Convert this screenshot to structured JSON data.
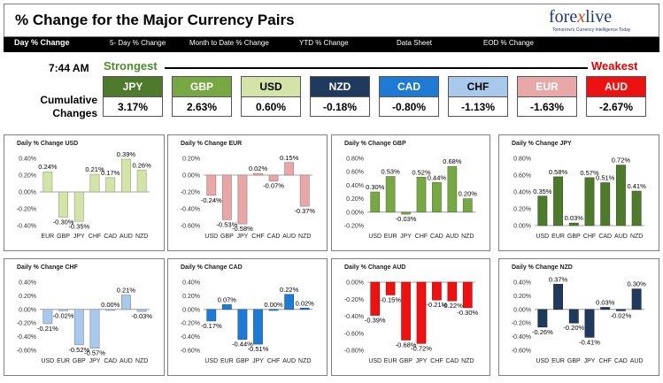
{
  "header": {
    "title": "% Change for the Major Currency Pairs",
    "logo_main_left": "fore",
    "logo_main_x": "x",
    "logo_main_right": "live",
    "logo_sub": "Tomorrow's Currency Intelligence Today"
  },
  "nav": {
    "items": [
      "Day % Change",
      "5- Day % Change",
      "Month to Date % Change",
      "YTD % Change",
      "Data Sheet",
      "EOD % Change"
    ]
  },
  "summary": {
    "time": "7:44 AM",
    "cumulative_label_1": "Cumulative",
    "cumulative_label_2": "Changes",
    "strongest_label": "Strongest",
    "weakest_label": "Weakest",
    "tiles": [
      {
        "currency": "JPY",
        "value": "3.17%",
        "color": "#4e7a2c",
        "text_color": "#ffffff"
      },
      {
        "currency": "GBP",
        "value": "2.63%",
        "color": "#77a843",
        "text_color": "#ffffff"
      },
      {
        "currency": "USD",
        "value": "0.60%",
        "color": "#d4e4a8",
        "text_color": "#000000"
      },
      {
        "currency": "NZD",
        "value": "-0.18%",
        "color": "#1f3a5c",
        "text_color": "#ffffff"
      },
      {
        "currency": "CAD",
        "value": "-0.80%",
        "color": "#1f7ad4",
        "text_color": "#ffffff"
      },
      {
        "currency": "CHF",
        "value": "-1.13%",
        "color": "#a8c8ec",
        "text_color": "#000000"
      },
      {
        "currency": "EUR",
        "value": "-1.63%",
        "color": "#e8a8a8",
        "text_color": "#ffffff"
      },
      {
        "currency": "AUD",
        "value": "-2.67%",
        "color": "#ee1111",
        "text_color": "#ffffff"
      }
    ]
  },
  "chart_data": [
    {
      "type": "bar",
      "title": "Daily % Change USD",
      "categories": [
        "EUR",
        "GBP",
        "JPY",
        "CHF",
        "CAD",
        "AUD",
        "NZD"
      ],
      "values": [
        0.24,
        -0.3,
        -0.35,
        0.21,
        0.17,
        0.39,
        0.26
      ],
      "labels": [
        "0.24%",
        "-0.30%",
        "-0.35%",
        "0.21%",
        "0.17%",
        "0.39%",
        "0.26%"
      ],
      "ylim": [
        -0.4,
        0.4
      ],
      "yticks": [
        "0.40%",
        "0.20%",
        "0.00%",
        "-0.20%",
        "-0.40%"
      ],
      "color": "#d4e4a8"
    },
    {
      "type": "bar",
      "title": "Daily % Change EUR",
      "categories": [
        "USD",
        "GBP",
        "JPY",
        "CHF",
        "CAD",
        "AUD",
        "NZD"
      ],
      "values": [
        -0.24,
        -0.53,
        -0.58,
        0.02,
        -0.07,
        0.15,
        -0.37
      ],
      "labels": [
        "-0.24%",
        "-0.53%",
        "-0.58%",
        "0.02%",
        "-0.07%",
        "0.15%",
        "-0.37%"
      ],
      "ylim": [
        -0.6,
        0.2
      ],
      "yticks": [
        "0.20%",
        "0.00%",
        "-0.20%",
        "-0.40%",
        "-0.60%"
      ],
      "color": "#e8a8a8"
    },
    {
      "type": "bar",
      "title": "Daily % Change GBP",
      "categories": [
        "USD",
        "EUR",
        "JPY",
        "CHF",
        "CAD",
        "AUD",
        "NZD"
      ],
      "values": [
        0.3,
        0.53,
        -0.03,
        0.52,
        0.44,
        0.68,
        0.2
      ],
      "labels": [
        "0.30%",
        "0.53%",
        "-0.03%",
        "0.52%",
        "0.44%",
        "0.68%",
        "0.20%"
      ],
      "ylim": [
        -0.2,
        0.8
      ],
      "yticks": [
        "0.80%",
        "0.60%",
        "0.40%",
        "0.20%",
        "0.00%",
        "-0.20%"
      ],
      "color": "#77a843"
    },
    {
      "type": "bar",
      "title": "Daily % Change JPY",
      "categories": [
        "USD",
        "EUR",
        "GBP",
        "CHF",
        "CAD",
        "AUD",
        "NZD"
      ],
      "values": [
        0.35,
        0.58,
        0.03,
        0.57,
        0.51,
        0.72,
        0.41
      ],
      "labels": [
        "0.35%",
        "0.58%",
        "0.03%",
        "0.57%",
        "0.51%",
        "0.72%",
        "0.41%"
      ],
      "ylim": [
        0,
        0.8
      ],
      "yticks": [
        "0.80%",
        "0.60%",
        "0.40%",
        "0.20%",
        "0.00%"
      ],
      "color": "#4e7a2c"
    },
    {
      "type": "bar",
      "title": "Daily % Change CHF",
      "categories": [
        "USD",
        "EUR",
        "GBP",
        "JPY",
        "CAD",
        "AUD",
        "NZD"
      ],
      "values": [
        -0.21,
        -0.02,
        -0.52,
        -0.57,
        0.0,
        0.21,
        -0.03
      ],
      "labels": [
        "-0.21%",
        "-0.02%",
        "-0.52%",
        "-0.57%",
        "0.00%",
        "0.21%",
        "-0.03%"
      ],
      "ylim": [
        -0.6,
        0.4
      ],
      "yticks": [
        "0.40%",
        "0.20%",
        "0.00%",
        "-0.20%",
        "-0.40%",
        "-0.60%"
      ],
      "color": "#a8c8ec"
    },
    {
      "type": "bar",
      "title": "Daily % Change CAD",
      "categories": [
        "USD",
        "EUR",
        "GBP",
        "JPY",
        "CHF",
        "AUD",
        "NZD"
      ],
      "values": [
        -0.17,
        0.07,
        -0.44,
        -0.51,
        0.0,
        0.22,
        0.02
      ],
      "labels": [
        "-0.17%",
        "0.07%",
        "-0.44%",
        "-0.51%",
        "0.00%",
        "0.22%",
        "0.02%"
      ],
      "ylim": [
        -0.6,
        0.4
      ],
      "yticks": [
        "0.40%",
        "0.20%",
        "0.00%",
        "-0.20%",
        "-0.40%",
        "-0.60%"
      ],
      "color": "#1f7ad4"
    },
    {
      "type": "bar",
      "title": "Daily % Change AUD",
      "categories": [
        "USD",
        "EUR",
        "GBP",
        "JPY",
        "CHF",
        "CAD",
        "NZD"
      ],
      "values": [
        -0.39,
        -0.15,
        -0.68,
        -0.72,
        -0.21,
        -0.22,
        -0.3
      ],
      "labels": [
        "-0.39%",
        "-0.15%",
        "-0.68%",
        "-0.72%",
        "-0.21%",
        "-0.22%",
        "-0.30%"
      ],
      "ylim": [
        -0.8,
        0
      ],
      "yticks": [
        "0.00%",
        "-0.20%",
        "-0.40%",
        "-0.60%",
        "-0.80%"
      ],
      "color": "#ee1111"
    },
    {
      "type": "bar",
      "title": "Daily % Change NZD",
      "categories": [
        "USD",
        "EUR",
        "GBP",
        "JPY",
        "CHF",
        "CAD",
        "AUD"
      ],
      "values": [
        -0.26,
        0.37,
        -0.2,
        -0.41,
        0.03,
        -0.02,
        0.3
      ],
      "labels": [
        "-0.26%",
        "0.37%",
        "-0.20%",
        "-0.41%",
        "0.03%",
        "-0.02%",
        "0.30%"
      ],
      "ylim": [
        -0.6,
        0.4
      ],
      "yticks": [
        "0.40%",
        "0.20%",
        "0.00%",
        "-0.20%",
        "-0.40%",
        "-0.60%"
      ],
      "color": "#1f3a5c"
    }
  ]
}
